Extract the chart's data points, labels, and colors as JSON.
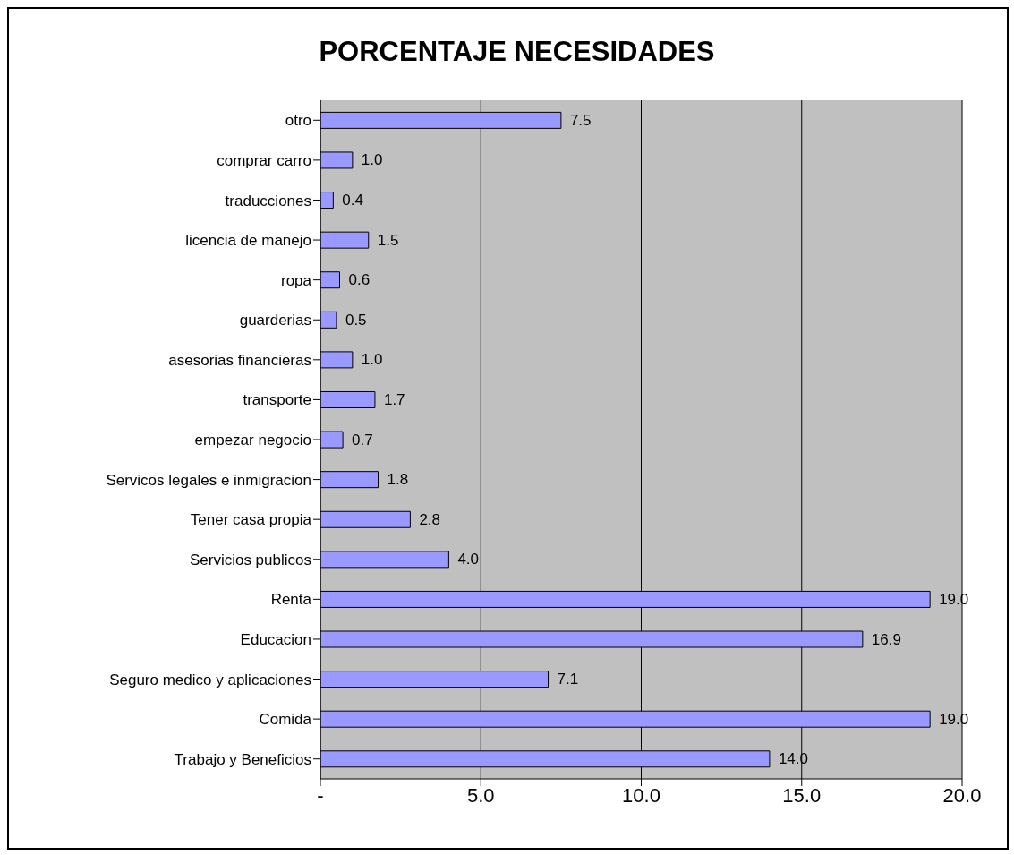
{
  "chart_data": {
    "type": "bar",
    "orientation": "horizontal",
    "title": "PORCENTAJE NECESIDADES",
    "categories": [
      "otro",
      "comprar carro",
      "traducciones",
      "licencia de manejo",
      "ropa",
      "guarderias",
      "asesorias financieras",
      "transporte",
      "empezar negocio",
      "Servicos legales e inmigracion",
      "Tener casa propia",
      "Servicios publicos",
      "Renta",
      "Educacion",
      "Seguro medico y aplicaciones",
      "Comida",
      "Trabajo y Beneficios"
    ],
    "values": [
      7.5,
      1.0,
      0.4,
      1.5,
      0.6,
      0.5,
      1.0,
      1.7,
      0.7,
      1.8,
      2.8,
      4.0,
      19.0,
      16.9,
      7.1,
      19.0,
      14.0
    ],
    "value_labels": [
      "7.5",
      "1.0",
      "0.4",
      "1.5",
      "0.6",
      "0.5",
      "1.0",
      "1.7",
      "0.7",
      "1.8",
      "2.8",
      "4.0",
      "19.0",
      "16.9",
      "7.1",
      "19.0",
      "14.0"
    ],
    "color": "#9999ff",
    "xlim": [
      0,
      20
    ],
    "xticks": [
      {
        "value": 0,
        "label": "-"
      },
      {
        "value": 5,
        "label": "5.0"
      },
      {
        "value": 10,
        "label": "10.0"
      },
      {
        "value": 15,
        "label": "15.0"
      },
      {
        "value": 20,
        "label": "20.0"
      }
    ],
    "grid": "x"
  }
}
